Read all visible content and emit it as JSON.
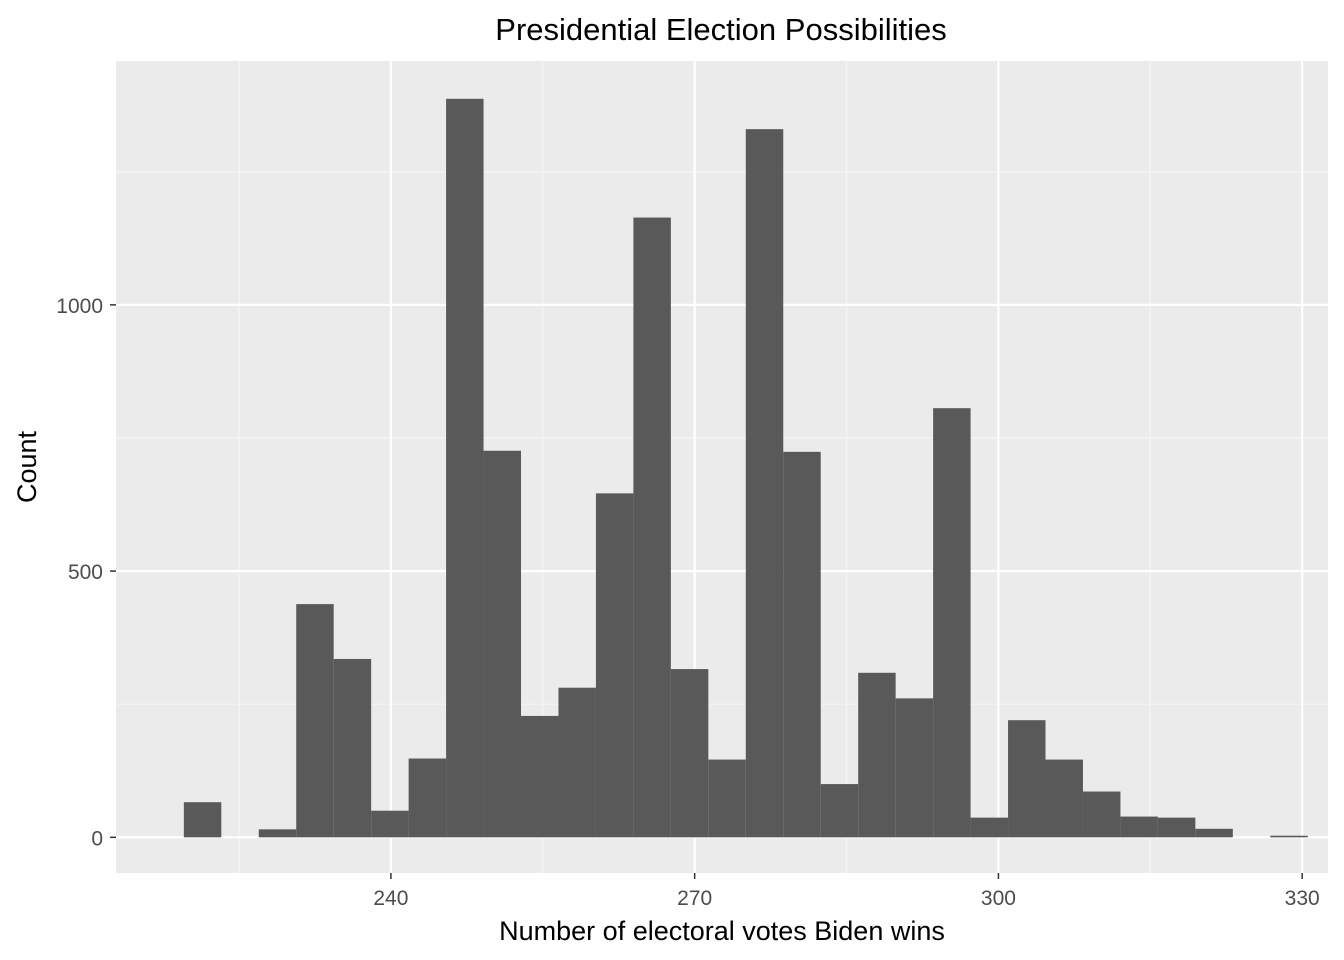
{
  "chart_data": {
    "type": "bar",
    "subtype": "histogram",
    "title": "Presidential Election Possibilities",
    "xlabel": "Number of electoral votes Biden wins",
    "ylabel": "Count",
    "xlim": [
      212.85,
      332.55
    ],
    "ylim": [
      -67,
      1458
    ],
    "x_ticks": [
      240,
      270,
      300,
      330
    ],
    "y_ticks": [
      0,
      500,
      1000
    ],
    "grid": true,
    "legend": "none",
    "bin_width": 3.7,
    "bins": [
      {
        "center": 221.4,
        "count": 66
      },
      {
        "center": 228.8,
        "count": 15
      },
      {
        "center": 232.5,
        "count": 438
      },
      {
        "center": 236.2,
        "count": 335
      },
      {
        "center": 239.9,
        "count": 50
      },
      {
        "center": 243.6,
        "count": 148
      },
      {
        "center": 247.3,
        "count": 1387
      },
      {
        "center": 251.0,
        "count": 726
      },
      {
        "center": 254.7,
        "count": 228
      },
      {
        "center": 258.4,
        "count": 281
      },
      {
        "center": 262.1,
        "count": 646
      },
      {
        "center": 265.8,
        "count": 1164
      },
      {
        "center": 269.5,
        "count": 316
      },
      {
        "center": 273.2,
        "count": 146
      },
      {
        "center": 276.9,
        "count": 1330
      },
      {
        "center": 280.6,
        "count": 724
      },
      {
        "center": 284.3,
        "count": 100
      },
      {
        "center": 288.0,
        "count": 309
      },
      {
        "center": 291.7,
        "count": 261
      },
      {
        "center": 295.4,
        "count": 806
      },
      {
        "center": 299.1,
        "count": 37
      },
      {
        "center": 302.8,
        "count": 220
      },
      {
        "center": 306.5,
        "count": 146
      },
      {
        "center": 310.2,
        "count": 86
      },
      {
        "center": 313.9,
        "count": 39
      },
      {
        "center": 317.6,
        "count": 37
      },
      {
        "center": 321.3,
        "count": 16
      },
      {
        "center": 328.7,
        "count": 3
      }
    ]
  },
  "colors": {
    "panel_background": "#ebebeb",
    "grid_major": "#ffffff",
    "grid_minor": "#f5f5f5",
    "bar_fill": "#595959",
    "tick_text": "#4d4d4d",
    "tick_mark": "#333333",
    "text": "#000000"
  }
}
